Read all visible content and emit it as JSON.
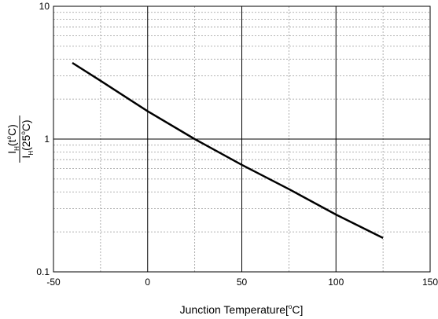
{
  "chart_data": {
    "type": "line",
    "xlabel": "Junction Temperature[°C]",
    "xlabel_parts": {
      "pre": "Junction Temperature[",
      "sup": "o",
      "post": "C]"
    },
    "ylabel": {
      "numerator": {
        "main": "I",
        "sub": "H",
        "rest": "(t",
        "sup": "o",
        "end": "C)"
      },
      "denominator": {
        "main": "I",
        "sub": "H",
        "rest": "(25",
        "sup": "o",
        "end": "C)"
      }
    },
    "xlim": [
      -50,
      150
    ],
    "ylim": [
      0.1,
      10
    ],
    "yscale": "log",
    "x_ticks": [
      "-50",
      "0",
      "50",
      "100",
      "150"
    ],
    "y_ticks": [
      "0.1",
      "1",
      "10"
    ],
    "grid": true,
    "series": [
      {
        "x": [
          -40,
          -25,
          0,
          25,
          50,
          75,
          100,
          125
        ],
        "y": [
          3.75,
          2.75,
          1.62,
          1.0,
          0.64,
          0.42,
          0.27,
          0.18
        ]
      }
    ]
  }
}
